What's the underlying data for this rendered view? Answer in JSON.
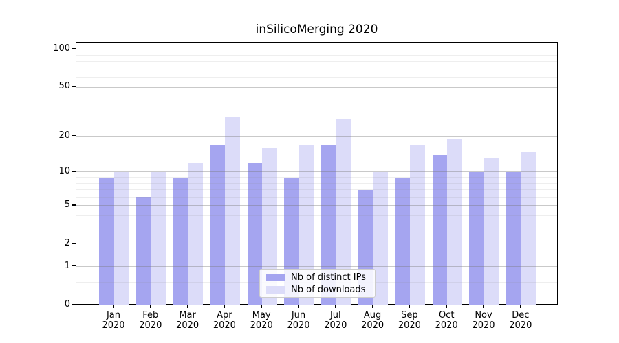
{
  "chart_data": {
    "type": "bar",
    "title": "inSilicoMerging 2020",
    "categories": [
      "Jan 2020",
      "Feb 2020",
      "Mar 2020",
      "Apr 2020",
      "May 2020",
      "Jun 2020",
      "Jul 2020",
      "Aug 2020",
      "Sep 2020",
      "Oct 2020",
      "Nov 2020",
      "Dec 2020"
    ],
    "series": [
      {
        "name": "Nb of distinct IPs",
        "color": "#a5a5f0",
        "values": [
          9,
          6,
          9,
          17,
          12,
          9,
          17,
          7,
          9,
          14,
          10,
          10
        ]
      },
      {
        "name": "Nb of downloads",
        "color": "#dcdcf9",
        "values": [
          10,
          10,
          12,
          29,
          16,
          17,
          28,
          10,
          17,
          19,
          13,
          15
        ]
      }
    ],
    "xlabel": "",
    "ylabel": "",
    "yscale": "log1p",
    "ylim": [
      0,
      113.3
    ],
    "y_major_ticks": [
      0,
      1,
      2,
      5,
      10,
      20,
      50,
      100
    ],
    "y_minor_ticks": [
      0.5,
      3,
      4,
      6,
      7,
      8,
      9,
      30,
      40,
      60,
      70,
      80,
      90
    ],
    "grid": true,
    "legend_position": "lower center"
  }
}
